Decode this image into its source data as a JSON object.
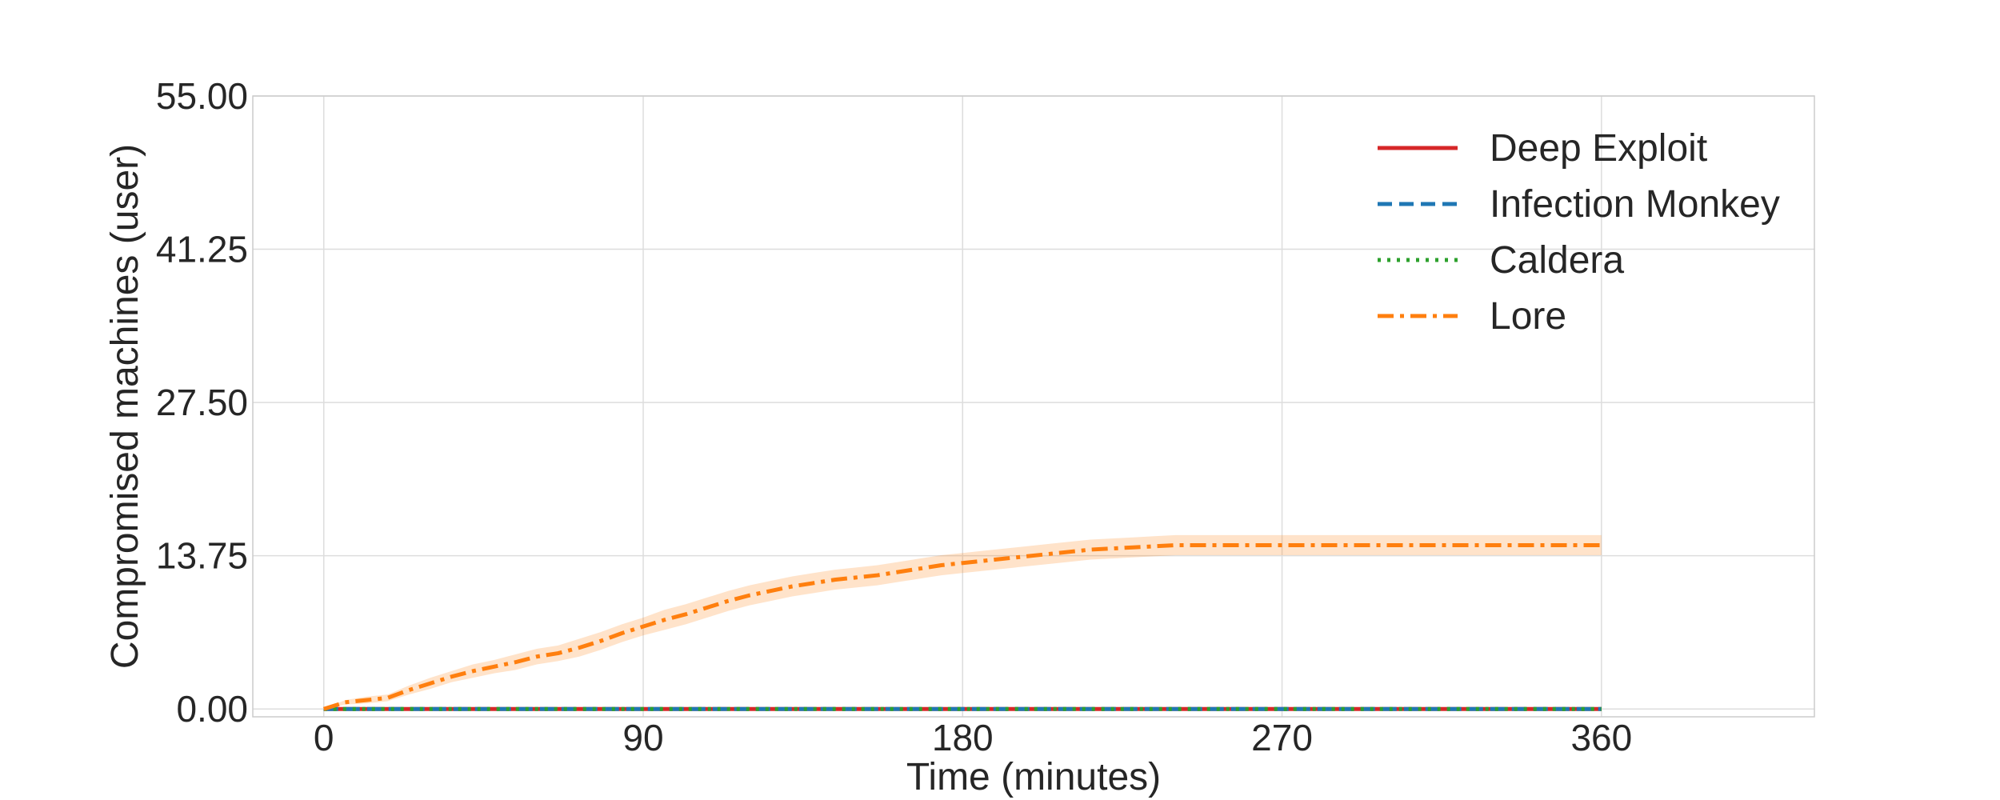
{
  "chart_data": {
    "type": "line",
    "xlabel": "Time (minutes)",
    "ylabel": "Compromised machines (user)",
    "xlim": [
      -20,
      420
    ],
    "ylim": [
      -0.7,
      55
    ],
    "x_ticks": [
      0,
      90,
      180,
      270,
      360
    ],
    "y_ticks": [
      0,
      13.75,
      27.5,
      41.25,
      55
    ],
    "x_tick_labels": [
      "0",
      "90",
      "180",
      "270",
      "360"
    ],
    "y_tick_labels": [
      "0.00",
      "13.75",
      "27.50",
      "41.25",
      "55.00"
    ],
    "grid": true,
    "legend_position": "top-right",
    "series": [
      {
        "name": "Deep Exploit",
        "color": "#d62728",
        "style": "solid",
        "x": [
          0,
          360
        ],
        "y": [
          0,
          0
        ]
      },
      {
        "name": "Infection Monkey",
        "color": "#1f77b4",
        "style": "dashed",
        "x": [
          0,
          360
        ],
        "y": [
          0,
          0
        ]
      },
      {
        "name": "Caldera",
        "color": "#2ca02c",
        "style": "dotted",
        "x": [
          0,
          360
        ],
        "y": [
          0,
          0
        ]
      },
      {
        "name": "Lore",
        "color": "#ff7f0e",
        "style": "dashdot",
        "band_color": "#ff7f0e",
        "x": [
          0,
          6,
          12,
          18,
          24,
          30,
          36,
          42,
          48,
          54,
          60,
          66,
          72,
          78,
          84,
          90,
          96,
          102,
          108,
          114,
          120,
          126,
          132,
          138,
          144,
          150,
          156,
          162,
          168,
          174,
          180,
          186,
          192,
          198,
          204,
          210,
          216,
          222,
          228,
          234,
          240,
          246,
          252,
          258,
          264,
          270,
          276,
          282,
          288,
          294,
          300,
          306,
          312,
          318,
          324,
          330,
          336,
          342,
          348,
          354,
          360
        ],
        "y": [
          0,
          0.6,
          0.8,
          1.0,
          1.7,
          2.3,
          2.9,
          3.4,
          3.8,
          4.2,
          4.7,
          5.0,
          5.5,
          6.1,
          6.8,
          7.4,
          8.0,
          8.5,
          9.1,
          9.7,
          10.2,
          10.6,
          11.0,
          11.3,
          11.6,
          11.8,
          12.0,
          12.3,
          12.6,
          12.9,
          13.1,
          13.3,
          13.5,
          13.7,
          13.9,
          14.1,
          14.3,
          14.4,
          14.5,
          14.6,
          14.7,
          14.7,
          14.7,
          14.7,
          14.7,
          14.7,
          14.7,
          14.7,
          14.7,
          14.7,
          14.7,
          14.7,
          14.7,
          14.7,
          14.7,
          14.7,
          14.7,
          14.7,
          14.7,
          14.7,
          14.7
        ],
        "band_half_width": [
          0,
          0.2,
          0.3,
          0.3,
          0.4,
          0.5,
          0.5,
          0.6,
          0.6,
          0.7,
          0.7,
          0.7,
          0.8,
          0.8,
          0.8,
          0.8,
          0.9,
          0.9,
          0.9,
          0.9,
          0.9,
          0.9,
          0.9,
          0.9,
          0.9,
          0.9,
          0.9,
          0.9,
          0.9,
          0.9,
          0.9,
          0.9,
          0.9,
          0.9,
          0.9,
          0.9,
          0.9,
          0.9,
          0.9,
          0.9,
          0.9,
          0.9,
          0.9,
          0.9,
          0.9,
          0.9,
          0.9,
          0.9,
          0.9,
          0.9,
          0.9,
          0.9,
          0.9,
          0.9,
          0.9,
          0.9,
          0.9,
          0.9,
          0.9,
          0.9,
          0.9
        ]
      }
    ]
  }
}
